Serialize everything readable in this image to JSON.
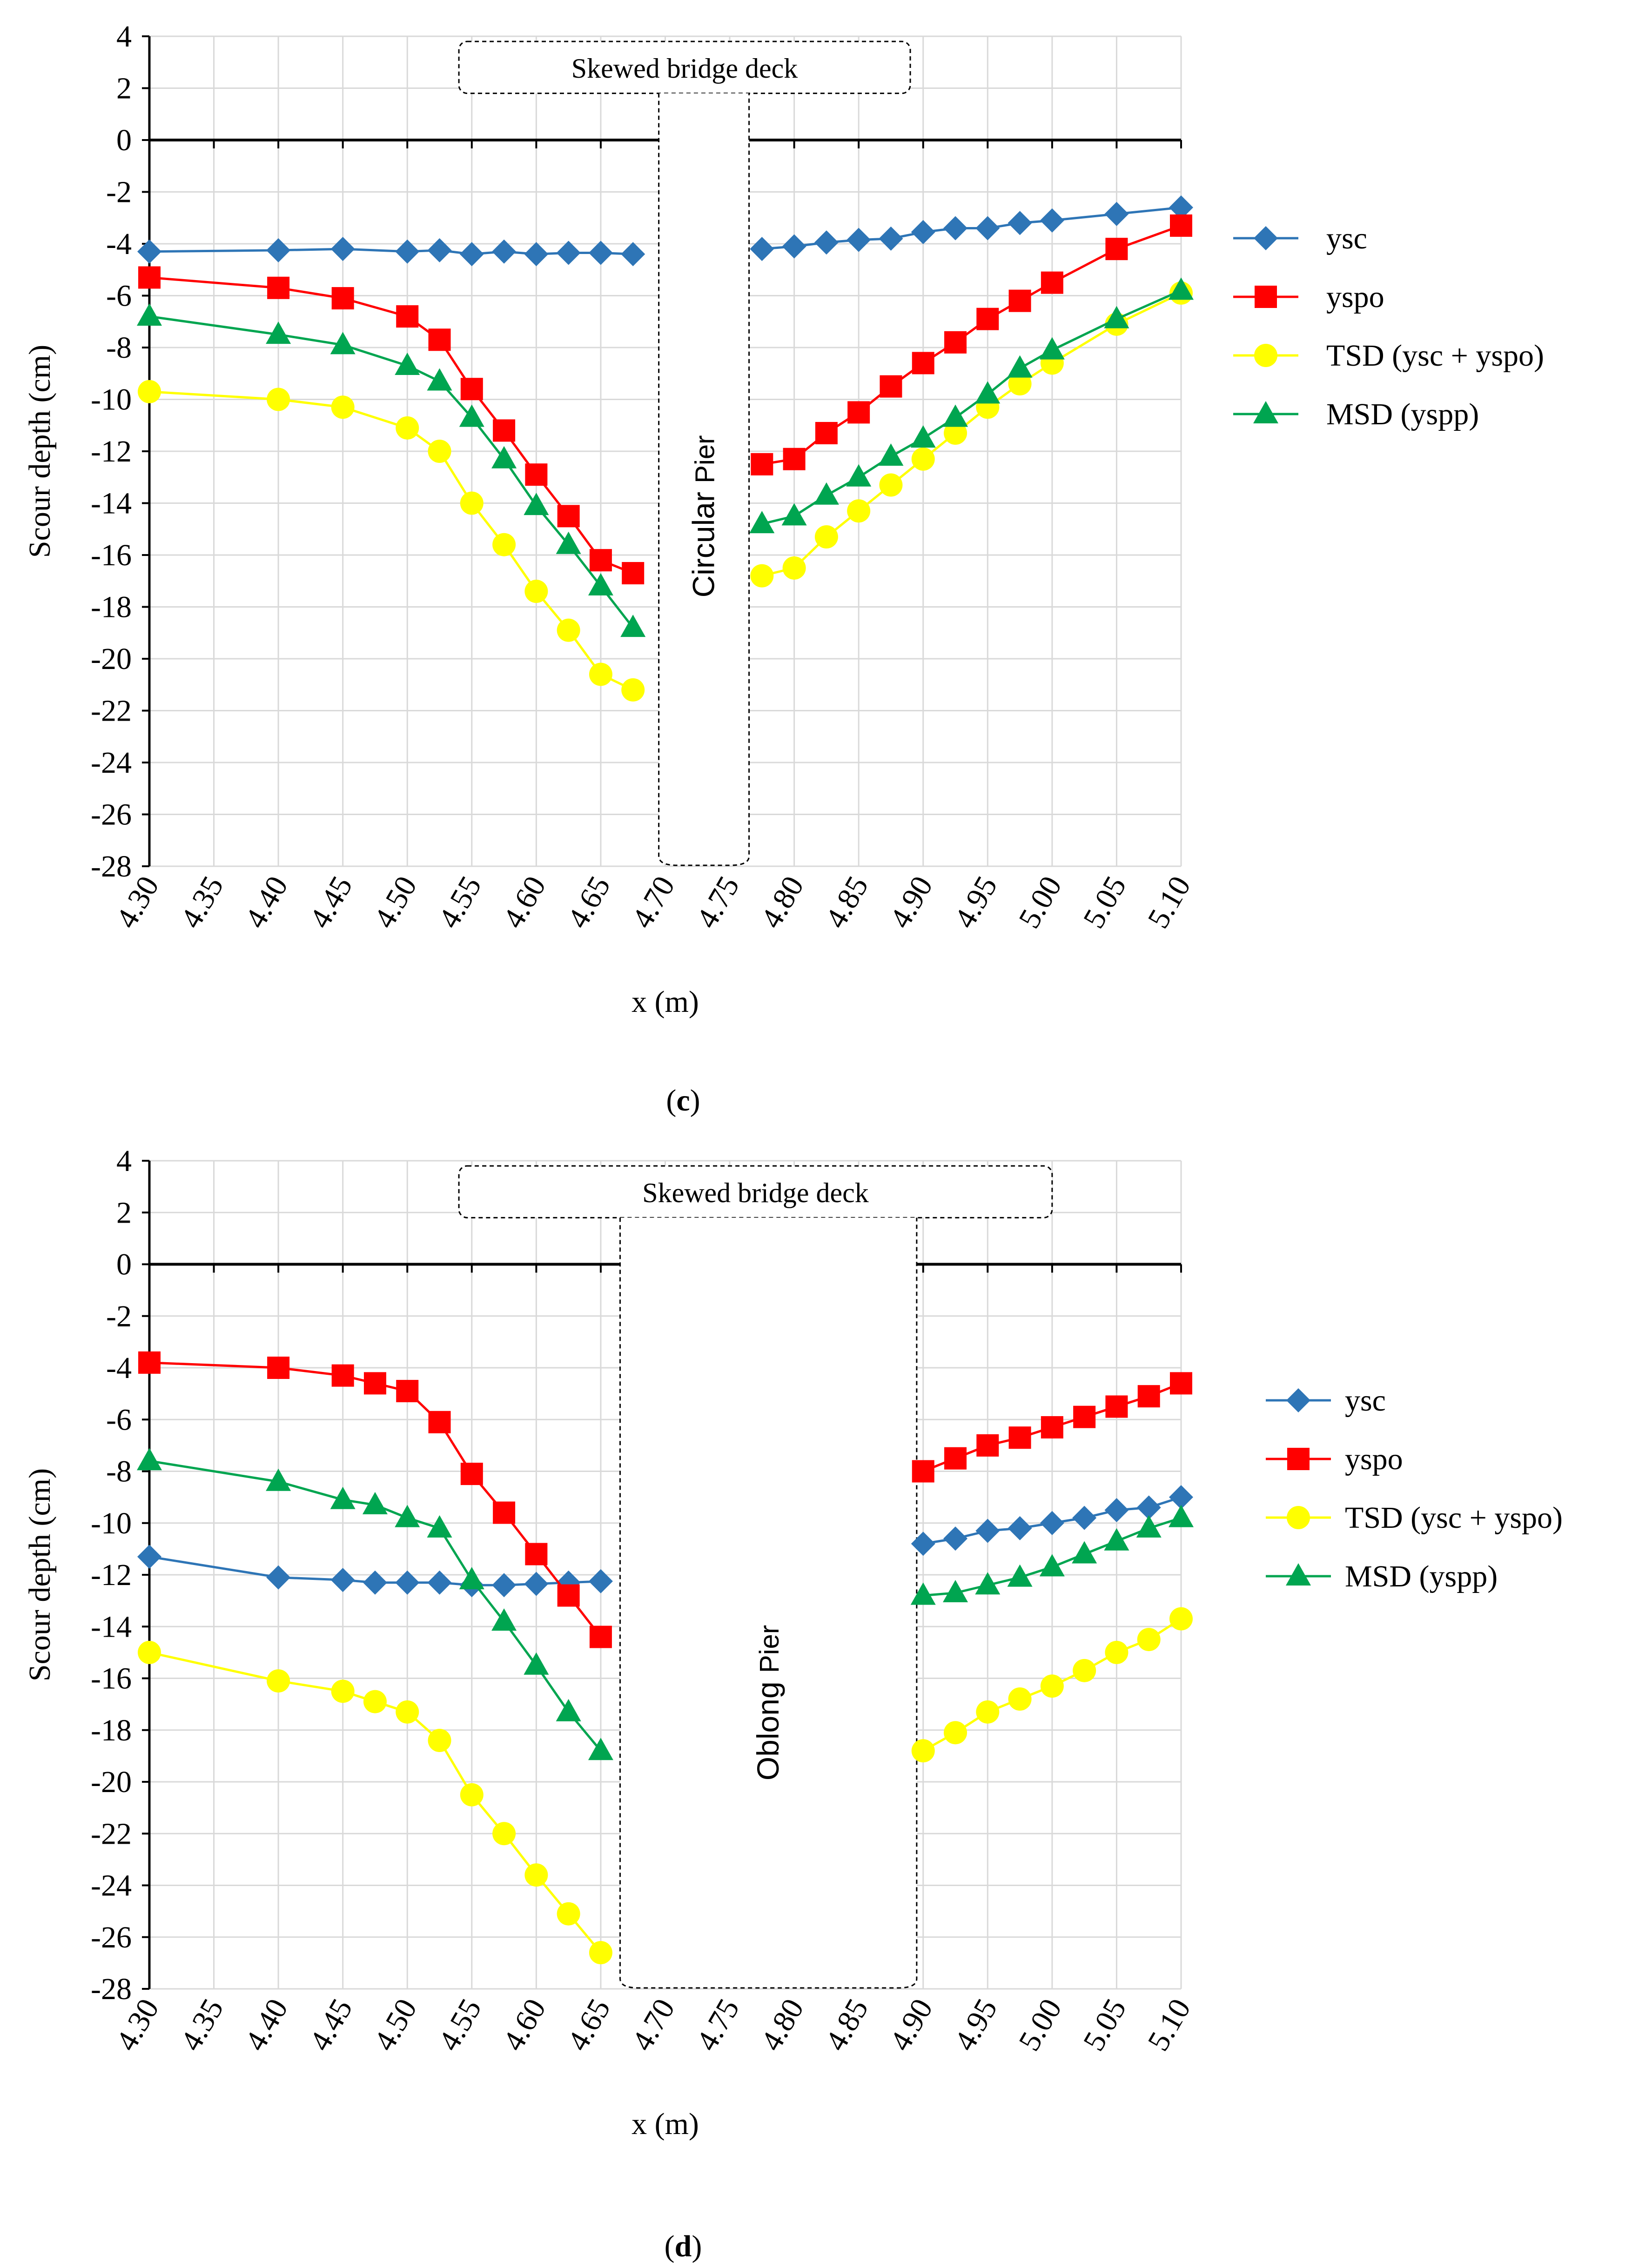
{
  "chart_data": [
    {
      "type": "line",
      "panel": "c",
      "caption_letter": "c",
      "xlabel": "x (m)",
      "ylabel": "Scour depth (cm)",
      "xlim": [
        4.3,
        5.1
      ],
      "ylim": [
        -28,
        4
      ],
      "x_ticks": [
        "4.30",
        "4.35",
        "4.40",
        "4.45",
        "4.50",
        "4.55",
        "4.60",
        "4.65",
        "4.70",
        "4.75",
        "4.80",
        "4.85",
        "4.90",
        "4.95",
        "5.00",
        "5.05",
        "5.10"
      ],
      "y_ticks": [
        "4",
        "2",
        "0",
        "-2",
        "-4",
        "-6",
        "-8",
        "-10",
        "-12",
        "-14",
        "-16",
        "-18",
        "-20",
        "-22",
        "-24",
        "-26",
        "-28"
      ],
      "grid": true,
      "legend_position": "right",
      "deck_label": "Skewed bridge deck",
      "deck_range": [
        4.54,
        4.89
      ],
      "pier_label_main": "Circular",
      "pier_label_small": "Pier",
      "pier_range": [
        4.695,
        4.765
      ],
      "series": [
        {
          "name": "ysc",
          "color": "#2E75B6",
          "marker": "diamond",
          "segments": [
            {
              "x": [
                4.3,
                4.4,
                4.45,
                4.5,
                4.525,
                4.55,
                4.575,
                4.6,
                4.625,
                4.65,
                4.675
              ],
              "y": [
                -4.3,
                -4.25,
                -4.2,
                -4.3,
                -4.25,
                -4.4,
                -4.3,
                -4.4,
                -4.35,
                -4.35,
                -4.4
              ]
            },
            {
              "x": [
                4.775,
                4.8,
                4.825,
                4.85,
                4.875,
                4.9,
                4.925,
                4.95,
                4.975,
                5.0,
                5.05,
                5.1
              ],
              "y": [
                -4.2,
                -4.1,
                -3.95,
                -3.85,
                -3.8,
                -3.55,
                -3.4,
                -3.4,
                -3.2,
                -3.1,
                -2.85,
                -2.6
              ]
            }
          ]
        },
        {
          "name": "yspo",
          "color": "#FF0000",
          "marker": "square",
          "segments": [
            {
              "x": [
                4.3,
                4.4,
                4.45,
                4.5,
                4.525,
                4.55,
                4.575,
                4.6,
                4.625,
                4.65,
                4.675
              ],
              "y": [
                -5.3,
                -5.7,
                -6.1,
                -6.8,
                -7.7,
                -9.6,
                -11.2,
                -12.9,
                -14.5,
                -16.2,
                -16.7
              ]
            },
            {
              "x": [
                4.775,
                4.8,
                4.825,
                4.85,
                4.875,
                4.9,
                4.925,
                4.95,
                4.975,
                5.0,
                5.05,
                5.1
              ],
              "y": [
                -12.5,
                -12.3,
                -11.3,
                -10.5,
                -9.5,
                -8.6,
                -7.8,
                -6.9,
                -6.2,
                -5.5,
                -4.2,
                -3.3
              ]
            }
          ]
        },
        {
          "name": "TSD (ysc + yspo)",
          "color": "#FFFF00",
          "marker": "circle",
          "segments": [
            {
              "x": [
                4.3,
                4.4,
                4.45,
                4.5,
                4.525,
                4.55,
                4.575,
                4.6,
                4.625,
                4.65,
                4.675
              ],
              "y": [
                -9.7,
                -10.0,
                -10.3,
                -11.1,
                -12.0,
                -14.0,
                -15.6,
                -17.4,
                -18.9,
                -20.6,
                -21.2
              ]
            },
            {
              "x": [
                4.775,
                4.8,
                4.825,
                4.85,
                4.875,
                4.9,
                4.925,
                4.95,
                4.975,
                5.0,
                5.05,
                5.1
              ],
              "y": [
                -16.8,
                -16.5,
                -15.3,
                -14.3,
                -13.3,
                -12.3,
                -11.3,
                -10.3,
                -9.4,
                -8.6,
                -7.1,
                -5.9
              ]
            }
          ]
        },
        {
          "name": "MSD (yspp)",
          "color": "#00A550",
          "marker": "triangle",
          "segments": [
            {
              "x": [
                4.3,
                4.4,
                4.45,
                4.5,
                4.525,
                4.55,
                4.575,
                4.6,
                4.625,
                4.65,
                4.675
              ],
              "y": [
                -6.8,
                -7.5,
                -7.9,
                -8.7,
                -9.3,
                -10.7,
                -12.3,
                -14.1,
                -15.6,
                -17.2,
                -18.8
              ]
            },
            {
              "x": [
                4.775,
                4.8,
                4.825,
                4.85,
                4.875,
                4.9,
                4.925,
                4.95,
                4.975,
                5.0,
                5.05,
                5.1
              ],
              "y": [
                -14.8,
                -14.5,
                -13.7,
                -13.0,
                -12.2,
                -11.5,
                -10.7,
                -9.8,
                -8.8,
                -8.1,
                -6.9,
                -5.8
              ]
            }
          ]
        }
      ]
    },
    {
      "type": "line",
      "panel": "d",
      "caption_letter": "d",
      "xlabel": "x (m)",
      "ylabel": "Scour depth (cm)",
      "xlim": [
        4.3,
        5.1
      ],
      "ylim": [
        -28,
        4
      ],
      "x_ticks": [
        "4.30",
        "4.35",
        "4.40",
        "4.45",
        "4.50",
        "4.55",
        "4.60",
        "4.65",
        "4.70",
        "4.75",
        "4.80",
        "4.85",
        "4.90",
        "4.95",
        "5.00",
        "5.05",
        "5.10"
      ],
      "y_ticks": [
        "4",
        "2",
        "0",
        "-2",
        "-4",
        "-6",
        "-8",
        "-10",
        "-12",
        "-14",
        "-16",
        "-18",
        "-20",
        "-22",
        "-24",
        "-26",
        "-28"
      ],
      "grid": true,
      "legend_position": "right",
      "deck_label": "Skewed bridge deck",
      "deck_range": [
        4.54,
        5.0
      ],
      "pier_label_main": "Oblong",
      "pier_label_small": "Pier",
      "pier_range": [
        4.665,
        4.895
      ],
      "series": [
        {
          "name": "ysc",
          "color": "#2E75B6",
          "marker": "diamond",
          "segments": [
            {
              "x": [
                4.3,
                4.4,
                4.45,
                4.475,
                4.5,
                4.525,
                4.55,
                4.575,
                4.6,
                4.625,
                4.65
              ],
              "y": [
                -11.3,
                -12.1,
                -12.2,
                -12.3,
                -12.3,
                -12.3,
                -12.4,
                -12.4,
                -12.35,
                -12.3,
                -12.25
              ]
            },
            {
              "x": [
                4.9,
                4.925,
                4.95,
                4.975,
                5.0,
                5.025,
                5.05,
                5.075,
                5.1
              ],
              "y": [
                -10.8,
                -10.6,
                -10.3,
                -10.2,
                -10.0,
                -9.8,
                -9.5,
                -9.4,
                -9.0
              ]
            }
          ]
        },
        {
          "name": "yspo",
          "color": "#FF0000",
          "marker": "square",
          "segments": [
            {
              "x": [
                4.3,
                4.4,
                4.45,
                4.475,
                4.5,
                4.525,
                4.55,
                4.575,
                4.6,
                4.625,
                4.65
              ],
              "y": [
                -3.8,
                -4.0,
                -4.3,
                -4.6,
                -4.9,
                -6.1,
                -8.1,
                -9.6,
                -11.2,
                -12.8,
                -14.4
              ]
            },
            {
              "x": [
                4.9,
                4.925,
                4.95,
                4.975,
                5.0,
                5.025,
                5.05,
                5.075,
                5.1
              ],
              "y": [
                -8.0,
                -7.5,
                -7.0,
                -6.7,
                -6.3,
                -5.9,
                -5.5,
                -5.1,
                -4.6
              ]
            }
          ]
        },
        {
          "name": "TSD (ysc + yspo)",
          "color": "#FFFF00",
          "marker": "circle",
          "segments": [
            {
              "x": [
                4.3,
                4.4,
                4.45,
                4.475,
                4.5,
                4.525,
                4.55,
                4.575,
                4.6,
                4.625,
                4.65
              ],
              "y": [
                -15.0,
                -16.1,
                -16.5,
                -16.9,
                -17.3,
                -18.4,
                -20.5,
                -22.0,
                -23.6,
                -25.1,
                -26.6
              ]
            },
            {
              "x": [
                4.9,
                4.925,
                4.95,
                4.975,
                5.0,
                5.025,
                5.05,
                5.075,
                5.1
              ],
              "y": [
                -18.8,
                -18.1,
                -17.3,
                -16.8,
                -16.3,
                -15.7,
                -15.0,
                -14.5,
                -13.7
              ]
            }
          ]
        },
        {
          "name": "MSD (yspp)",
          "color": "#00A550",
          "marker": "triangle",
          "segments": [
            {
              "x": [
                4.3,
                4.4,
                4.45,
                4.475,
                4.5,
                4.525,
                4.55,
                4.575,
                4.6,
                4.625,
                4.65
              ],
              "y": [
                -7.6,
                -8.4,
                -9.1,
                -9.3,
                -9.8,
                -10.2,
                -12.2,
                -13.8,
                -15.5,
                -17.3,
                -18.8
              ]
            },
            {
              "x": [
                4.9,
                4.925,
                4.95,
                4.975,
                5.0,
                5.025,
                5.05,
                5.075,
                5.1
              ],
              "y": [
                -12.8,
                -12.7,
                -12.4,
                -12.1,
                -11.7,
                -11.2,
                -10.7,
                -10.2,
                -9.8
              ]
            }
          ]
        }
      ]
    }
  ]
}
